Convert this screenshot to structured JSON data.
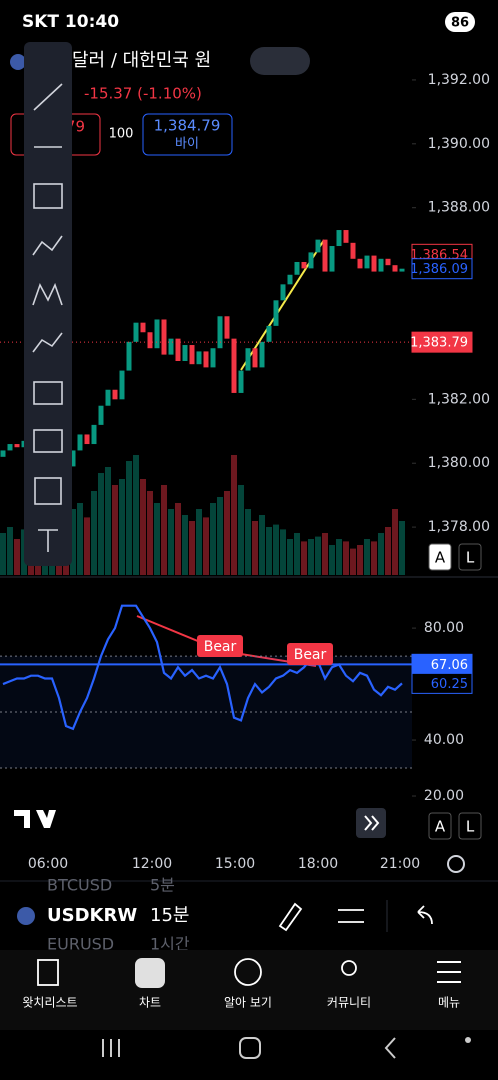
{
  "status_bar": {
    "carrier_time": "SKT 10:40",
    "battery": "86"
  },
  "header": {
    "symbol_name": "달러 / 대한민국 원",
    "change": "-15.37 (-1.10%)"
  },
  "order": {
    "sell_price_fragment": "79",
    "quantity": "100",
    "buy_price": "1,384.79",
    "buy_label": "바이"
  },
  "chart_data": [
    {
      "type": "candlestick",
      "up_color": "#089981",
      "down_color": "#f23645",
      "ylim": [
        1376.5,
        1393.25
      ],
      "yticks": [
        {
          "value": 1392,
          "label": "1,392.00"
        },
        {
          "value": 1390,
          "label": "1,390.00"
        },
        {
          "value": 1388,
          "label": "1,388.00"
        },
        {
          "value": 1382,
          "label": "1,382.00"
        },
        {
          "value": 1380,
          "label": "1,380.00"
        },
        {
          "value": 1378,
          "label": "1,378.00"
        }
      ],
      "open": [
        1380.2,
        1380.4,
        1380.6,
        1380.5,
        1380.7,
        1380.3,
        1380.0,
        1380.2,
        1380.5,
        1380.1,
        1379.9,
        1380.4,
        1380.9,
        1380.6,
        1381.2,
        1381.8,
        1382.3,
        1382.0,
        1382.9,
        1383.8,
        1384.4,
        1384.1,
        1383.6,
        1384.5,
        1383.4,
        1383.9,
        1383.2,
        1383.7,
        1383.1,
        1383.5,
        1383.0,
        1383.6,
        1384.6,
        1383.9,
        1382.2,
        1382.9,
        1383.6,
        1383.0,
        1383.8,
        1384.3,
        1385.1,
        1385.6,
        1385.9,
        1386.3,
        1386.1,
        1386.6,
        1387.0,
        1386.0,
        1386.8,
        1387.3,
        1386.9,
        1386.4,
        1386.1,
        1386.5,
        1386.0,
        1386.4,
        1386.2,
        1386.0
      ],
      "close": [
        1380.4,
        1380.6,
        1380.5,
        1380.7,
        1380.3,
        1380.0,
        1380.2,
        1380.5,
        1380.1,
        1379.9,
        1380.4,
        1380.9,
        1380.6,
        1381.2,
        1381.8,
        1382.3,
        1382.0,
        1382.9,
        1383.8,
        1384.4,
        1384.1,
        1383.6,
        1384.5,
        1383.4,
        1383.9,
        1383.2,
        1383.7,
        1383.1,
        1383.5,
        1383.0,
        1383.6,
        1384.6,
        1383.9,
        1382.2,
        1382.9,
        1383.6,
        1383.0,
        1383.8,
        1384.3,
        1385.1,
        1385.6,
        1385.9,
        1386.3,
        1386.1,
        1386.6,
        1387.0,
        1386.0,
        1386.8,
        1387.3,
        1386.9,
        1386.4,
        1386.1,
        1386.5,
        1386.0,
        1386.4,
        1386.2,
        1386.0,
        1386.09
      ],
      "volume": [
        35,
        40,
        30,
        38,
        45,
        42,
        30,
        35,
        40,
        50,
        55,
        60,
        48,
        70,
        85,
        90,
        75,
        80,
        95,
        100,
        80,
        70,
        60,
        75,
        55,
        60,
        50,
        45,
        55,
        48,
        60,
        65,
        70,
        100,
        75,
        55,
        45,
        50,
        40,
        42,
        38,
        30,
        35,
        28,
        30,
        32,
        35,
        25,
        30,
        28,
        22,
        25,
        30,
        28,
        35,
        40,
        55,
        45
      ],
      "volume_lim": [
        0,
        100
      ],
      "price_labels": [
        {
          "value": 1386.54,
          "label": "1,386.54",
          "color": "#f23645",
          "style": "outline"
        },
        {
          "value": 1386.09,
          "label": "1,386.09",
          "color": "#2962ff",
          "style": "outline"
        },
        {
          "value": 1383.79,
          "label": "1,383.79",
          "color": "#f23645",
          "style": "filled"
        }
      ]
    },
    {
      "type": "line",
      "color": "#2962ff",
      "ylim": [
        2.5,
        97.9
      ],
      "yticks": [
        {
          "value": 80,
          "label": "80.00"
        },
        {
          "value": 40,
          "label": "40.00"
        },
        {
          "value": 20,
          "label": "20.00"
        }
      ],
      "levels": [
        70,
        50,
        30
      ],
      "values": [
        60,
        61,
        62,
        62,
        63,
        63,
        62,
        62,
        55,
        45,
        44,
        50,
        55,
        62,
        70,
        76,
        80,
        88,
        88,
        88,
        84,
        80,
        75,
        64,
        62,
        66,
        63,
        65,
        62,
        63,
        62,
        66,
        60,
        48,
        47,
        55,
        60,
        57,
        59,
        62,
        63,
        65,
        64,
        66,
        69,
        68,
        62,
        66,
        67,
        63,
        61,
        64,
        63,
        58,
        56,
        59,
        58,
        60.25
      ],
      "price_labels": [
        {
          "value": 67.06,
          "label": "67.06",
          "color": "#2962ff",
          "style": "filled"
        },
        {
          "value": 60.25,
          "label": "60.25",
          "color": "#2962ff",
          "style": "outline"
        }
      ],
      "annotations": [
        "Bear",
        "Bear"
      ]
    }
  ],
  "time_axis": [
    "06:00",
    "12:00",
    "15:00",
    "18:00",
    "21:00"
  ],
  "scale_buttons": [
    "A",
    "L"
  ],
  "symbol_bar": {
    "symbol": "USDKRW",
    "interval": "15분",
    "ghost_above": [
      "BTCUSD",
      "5분"
    ],
    "ghost_below": [
      "EURUSD",
      "1시간"
    ]
  },
  "nav": [
    "왓치리스트",
    "차트",
    "알아 보기",
    "커뮤니티",
    "메뉴"
  ]
}
